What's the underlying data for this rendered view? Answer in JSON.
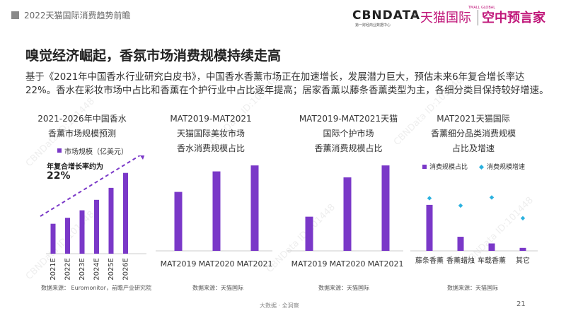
{
  "header": {
    "title": "2022天猫国际消费趋势前瞻",
    "logo_cbn": "CBNDATA",
    "logo_cbn_sub": "第一财经商业数据中心",
    "logo_x": "×",
    "logo_tmall": "天猫国际",
    "logo_tmall_sub": "TMALL GLOBAL",
    "logo_kz": "空中预言家"
  },
  "headline": "嗅觉经济崛起，香氛市场消费规模持续走高",
  "paragraph": "基于《2021年中国香水行业研究白皮书》，中国香水香薰市场正在加速增长，发展潜力巨大，预估未来6年复合增长率达22%。香水在彩妆市场中占比和香薰在个护行业中占比逐年提高；居家香薰以藤条香薰类型为主，各细分类目保持较好增速。",
  "colors": {
    "bar": "#7a38c8",
    "diamond": "#2bb1df",
    "axis": "#cccccc"
  },
  "chart1": {
    "title": "2021-2026年中国香水\n香薰市场规模预测",
    "legend": "市场规模（亿美元）",
    "cagr_label": "年复合增长率约为",
    "cagr_value": "22%",
    "source": "数据来源： Euromonitor，前瞻产业研究院"
  },
  "chart2": {
    "title": "MAT2019-MAT2021\n天猫国际美妆市场\n香水消费规模占比",
    "source": "数据来源：天猫国际"
  },
  "chart3": {
    "title": "MAT2019-MAT2021天猫\n国际个护市场\n香薰消费规模占比",
    "source": "数据来源：天猫国际"
  },
  "chart4": {
    "title": "MAT2021天猫国际\n香薰细分品类消费规模\n占比及增速",
    "legend_bar": "消费规模占比",
    "legend_dot": "消费规模增速",
    "source": "数据来源：天猫国际"
  },
  "footer": "大数据 · 全洞察",
  "page_number": "21",
  "watermark": "CBNData ID:101448",
  "chart_data": [
    {
      "type": "bar",
      "title": "2021-2026年中国香水香薰市场规模预测",
      "categories": [
        "2021E",
        "2022E",
        "2023E",
        "2024E",
        "2025E",
        "2026E"
      ],
      "series": [
        {
          "name": "市场规模（亿美元）",
          "values": [
            1.0,
            1.2,
            1.45,
            1.8,
            2.2,
            2.7
          ]
        }
      ],
      "annotations": [
        "年复合增长率约为",
        "22%"
      ],
      "ylim": [
        0,
        3.0
      ]
    },
    {
      "type": "bar",
      "title": "MAT2019-MAT2021天猫国际美妆市场香水消费规模占比",
      "categories": [
        "MAT2019",
        "MAT2020",
        "MAT2021"
      ],
      "values": [
        0.69,
        0.93,
        1.0
      ],
      "ylim": [
        0,
        1.1
      ]
    },
    {
      "type": "bar",
      "title": "MAT2019-MAT2021天猫国际个护市场香薰消费规模占比",
      "categories": [
        "MAT2019",
        "MAT2020",
        "MAT2021"
      ],
      "values": [
        0.4,
        0.86,
        1.0
      ],
      "ylim": [
        0,
        1.1
      ]
    },
    {
      "type": "bar",
      "title": "MAT2021天猫国际香薰细分品类消费规模占比及增速",
      "categories": [
        "藤条香薰",
        "香薰蜡烛",
        "车载香薰",
        "其它"
      ],
      "series": [
        {
          "name": "消费规模占比",
          "values": [
            0.62,
            0.19,
            0.1,
            0.04
          ]
        },
        {
          "name": "消费规模增速",
          "values": [
            0.71,
            0.61,
            0.72,
            0.44
          ]
        }
      ],
      "ylim": [
        0,
        1.0
      ]
    }
  ]
}
